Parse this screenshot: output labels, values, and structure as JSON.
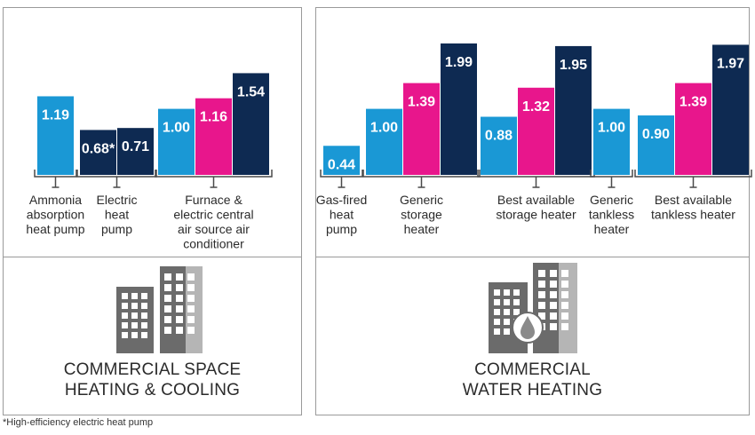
{
  "colors": {
    "light_blue": "#1a98d5",
    "magenta": "#e8168c",
    "navy": "#0e2a52",
    "bracket": "#4a4a4a",
    "building_dark": "#6b6b6b",
    "building_light": "#a9a9a9"
  },
  "footnote": "*High-efficiency electric heat pump",
  "panels": [
    {
      "caption_lines": [
        "COMMERCIAL SPACE",
        "HEATING & COOLING"
      ],
      "icon": "office-buildings-icon"
    },
    {
      "caption_lines": [
        "COMMERCIAL",
        "WATER HEATING"
      ],
      "icon": "office-buildings-water-drop-icon"
    }
  ],
  "chart_data": [
    {
      "type": "bar",
      "title": "",
      "groups": [
        {
          "label_lines": [
            "Ammonia",
            "absorption",
            "heat pump"
          ],
          "bars": [
            {
              "value": 1.19,
              "label": "1.19",
              "color": "light_blue"
            }
          ]
        },
        {
          "label_lines": [
            "Electric",
            "heat",
            "pump"
          ],
          "bars": [
            {
              "value": 0.68,
              "label": "0.68*",
              "color": "navy"
            },
            {
              "value": 0.71,
              "label": "0.71",
              "color": "navy"
            }
          ]
        },
        {
          "label_lines": [
            "Furnace &",
            "electric central",
            "air source air",
            "conditioner"
          ],
          "bars": [
            {
              "value": 1.0,
              "label": "1.00",
              "color": "light_blue"
            },
            {
              "value": 1.16,
              "label": "1.16",
              "color": "magenta"
            },
            {
              "value": 1.54,
              "label": "1.54",
              "color": "navy"
            }
          ]
        }
      ]
    },
    {
      "type": "bar",
      "title": "",
      "groups": [
        {
          "label_lines": [
            "Gas-fired",
            "heat",
            "pump"
          ],
          "bars": [
            {
              "value": 0.44,
              "label": "0.44",
              "color": "light_blue"
            }
          ]
        },
        {
          "label_lines": [
            "Generic",
            "storage",
            "heater"
          ],
          "bars": [
            {
              "value": 1.0,
              "label": "1.00",
              "color": "light_blue"
            },
            {
              "value": 1.39,
              "label": "1.39",
              "color": "magenta"
            },
            {
              "value": 1.99,
              "label": "1.99",
              "color": "navy"
            }
          ]
        },
        {
          "label_lines": [
            "Best available",
            "storage heater"
          ],
          "bars": [
            {
              "value": 0.88,
              "label": "0.88",
              "color": "light_blue"
            },
            {
              "value": 1.32,
              "label": "1.32",
              "color": "magenta"
            },
            {
              "value": 1.95,
              "label": "1.95",
              "color": "navy"
            }
          ]
        },
        {
          "label_lines": [
            "Generic",
            "tankless",
            "heater"
          ],
          "bars": [
            {
              "value": 1.0,
              "label": "1.00",
              "color": "light_blue"
            }
          ]
        },
        {
          "label_lines": [
            "Best available",
            "tankless heater"
          ],
          "bars": [
            {
              "value": 0.9,
              "label": "0.90",
              "color": "light_blue"
            },
            {
              "value": 1.39,
              "label": "1.39",
              "color": "magenta"
            },
            {
              "value": 1.97,
              "label": "1.97",
              "color": "navy"
            }
          ]
        }
      ]
    }
  ]
}
